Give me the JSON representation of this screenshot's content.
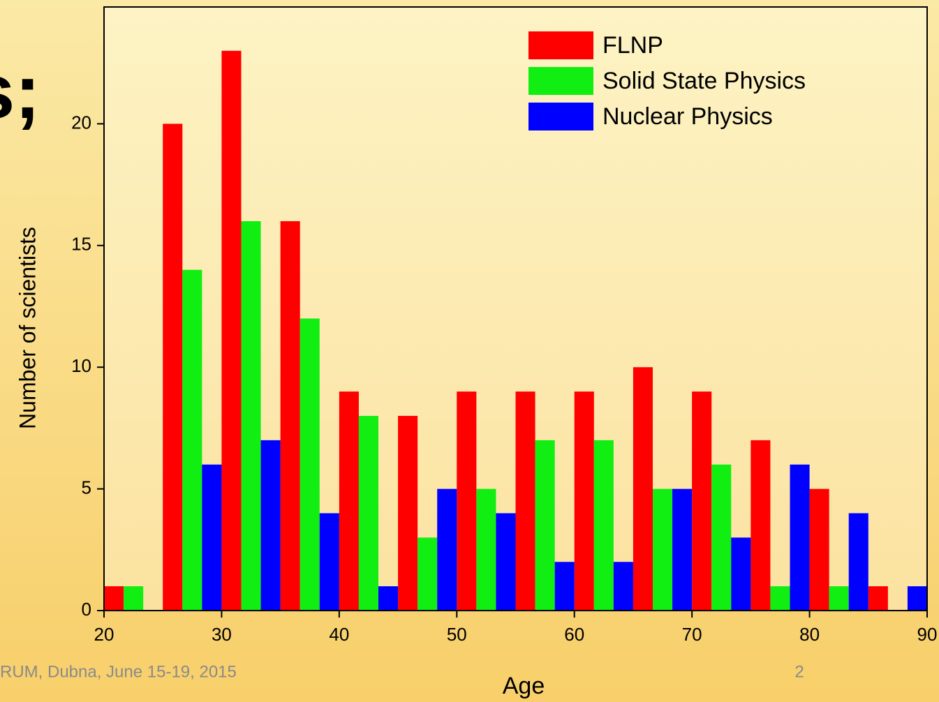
{
  "chart_data": {
    "type": "bar",
    "x": [
      20,
      25,
      30,
      35,
      40,
      45,
      50,
      55,
      60,
      65,
      70,
      75,
      80,
      85
    ],
    "series": [
      {
        "name": "FLNP",
        "color": "#ff0000",
        "values": [
          1,
          20,
          23,
          16,
          9,
          8,
          9,
          9,
          9,
          10,
          9,
          7,
          5,
          1
        ]
      },
      {
        "name": "Solid State Physics",
        "color": "#11ee11",
        "values": [
          1,
          14,
          16,
          12,
          8,
          3,
          5,
          7,
          7,
          5,
          6,
          1,
          1,
          0
        ]
      },
      {
        "name": "Nuclear Physics",
        "color": "#0000ff",
        "values": [
          0,
          6,
          7,
          4,
          1,
          5,
          4,
          2,
          2,
          5,
          3,
          6,
          4,
          1
        ]
      }
    ],
    "xlabel": "Age",
    "ylabel": "Number of scientists",
    "xlim": [
      20,
      90
    ],
    "xticks": [
      20,
      30,
      40,
      50,
      60,
      70,
      80,
      90
    ],
    "ylim": [
      0,
      24.8
    ],
    "yticks": [
      0,
      5,
      10,
      15,
      20
    ],
    "legend": "upper right"
  },
  "slide": {
    "fragment": "s;",
    "footer": "RUM, Dubna, June 15-19, 2015",
    "page": "2"
  }
}
